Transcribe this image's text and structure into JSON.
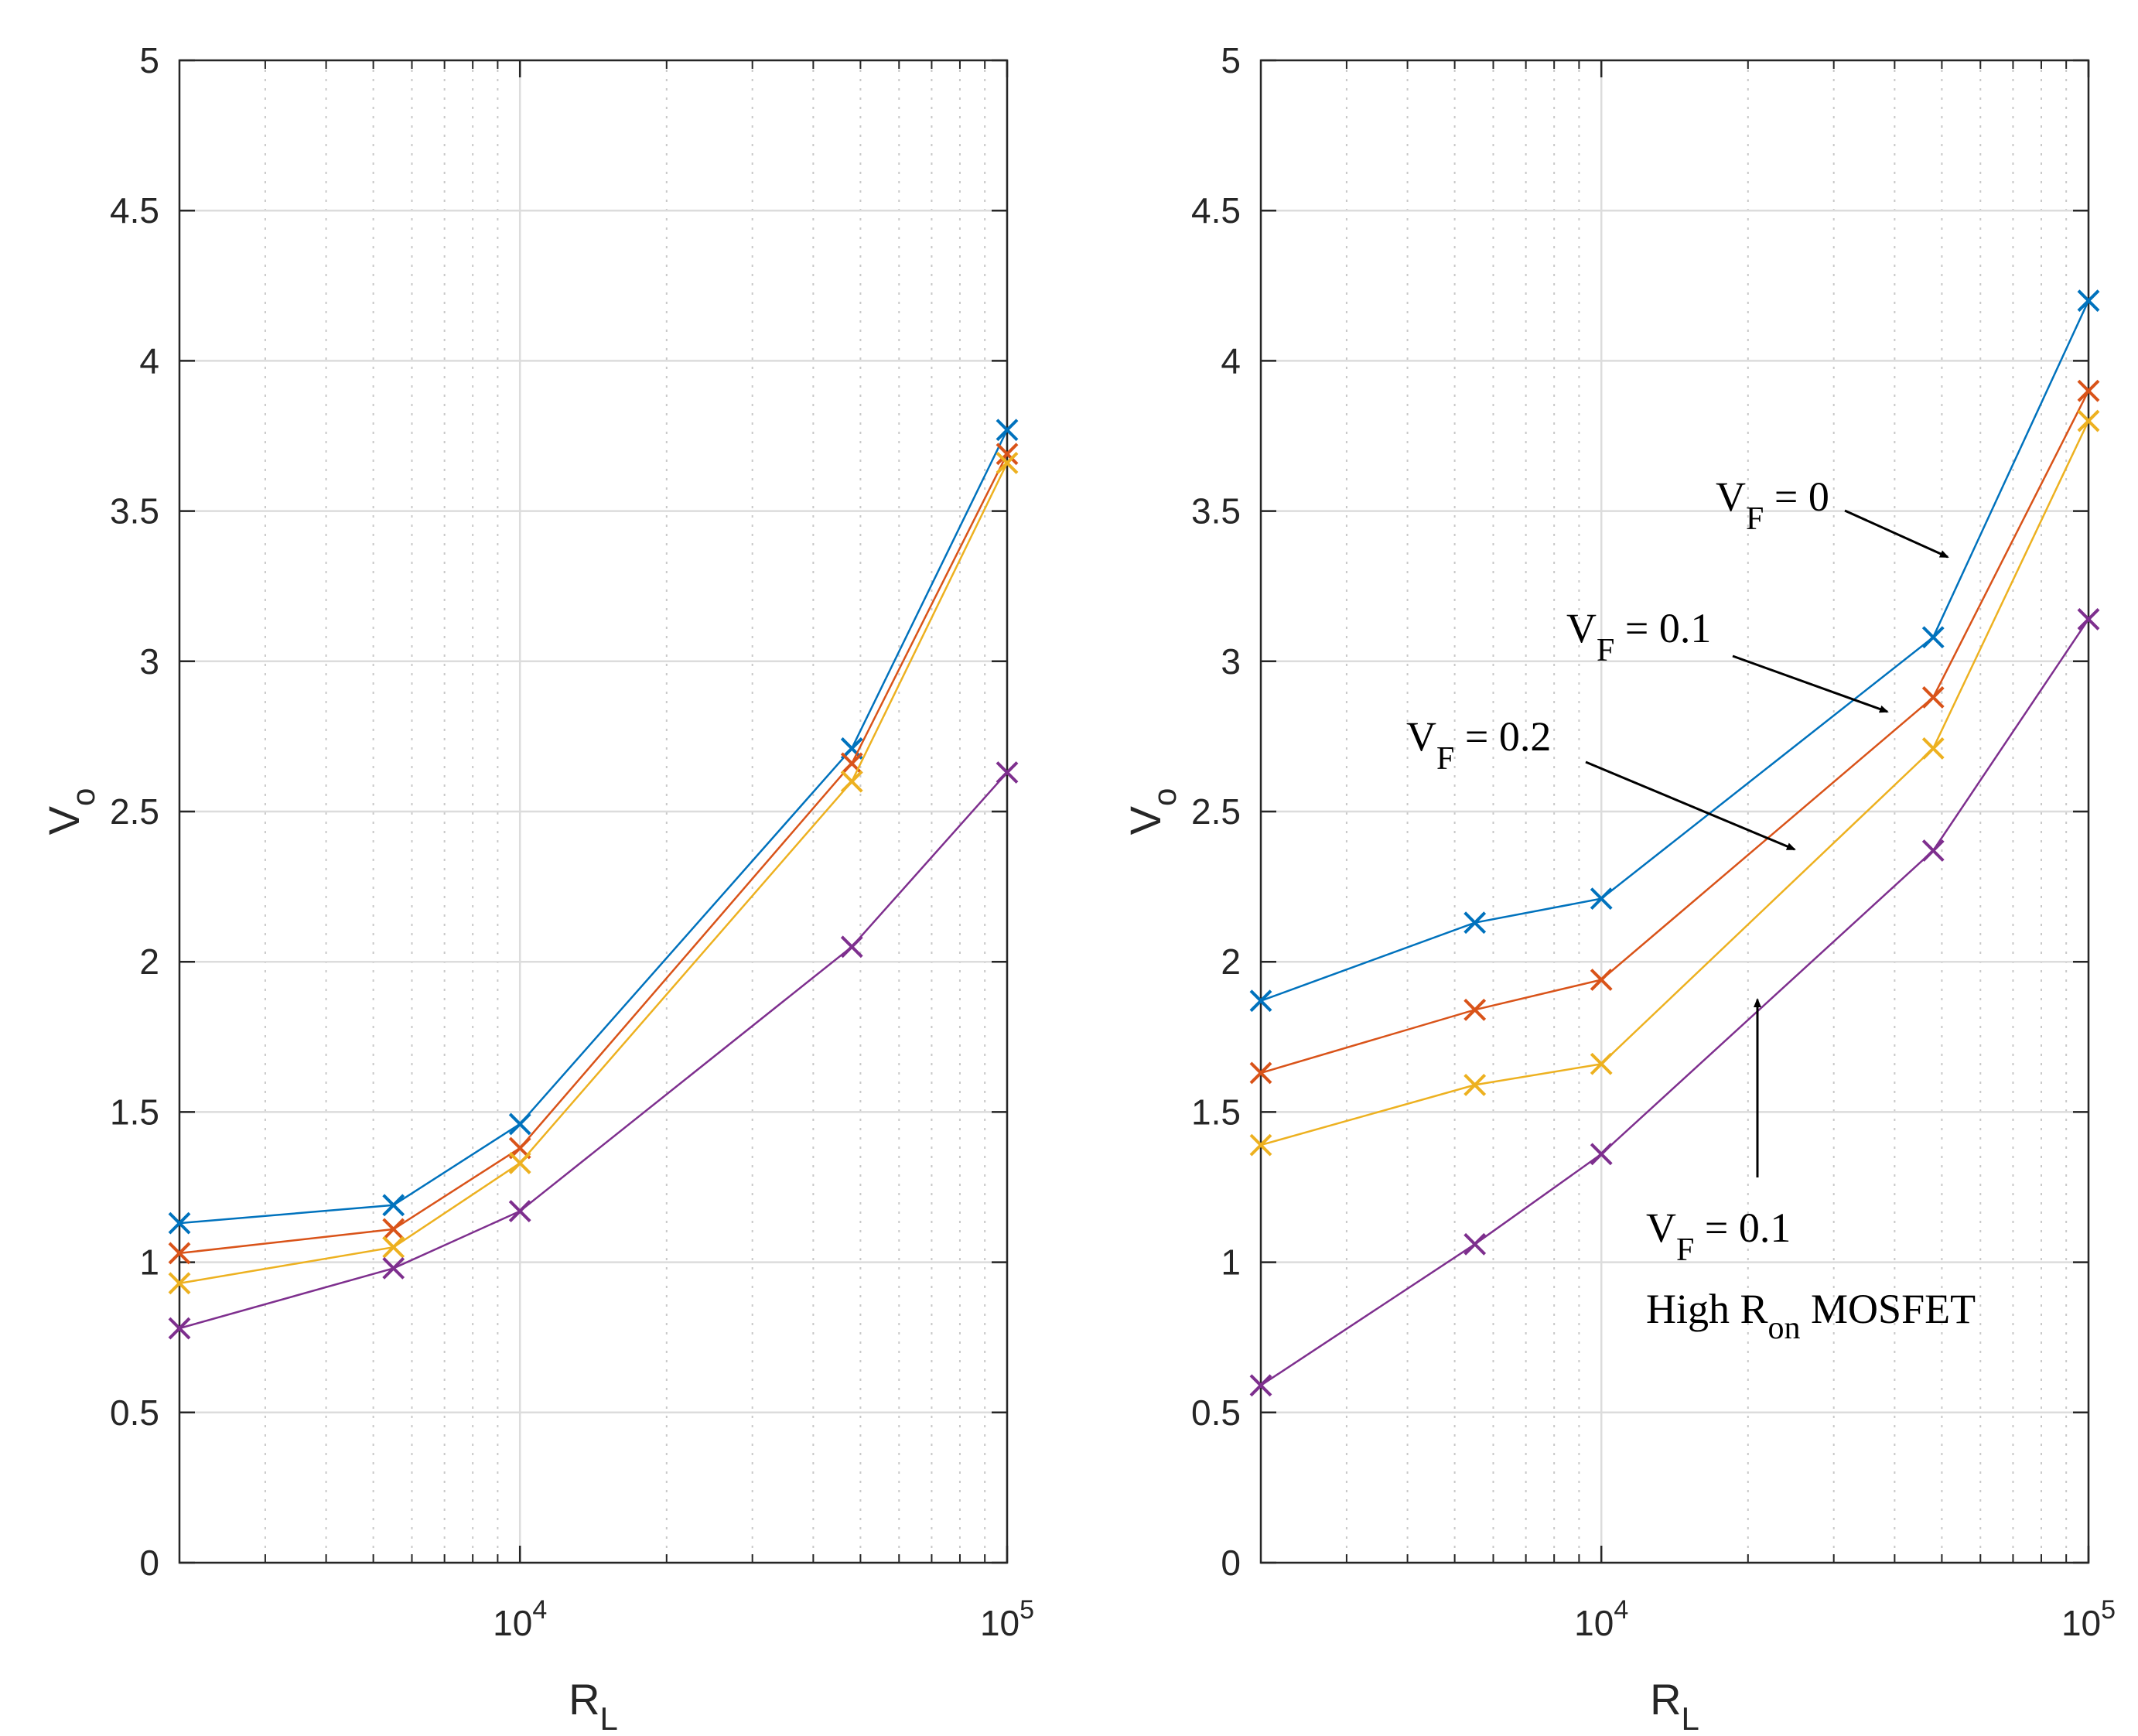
{
  "colors": {
    "blue": "#0072BD",
    "orange": "#D95319",
    "yellow": "#EDB120",
    "purple": "#7E2F8E",
    "axis": "#262626",
    "grid": "#dcdcdc",
    "arrow": "#000000"
  },
  "chart_data": [
    {
      "type": "line",
      "marker": "x",
      "xscale": "log",
      "xlim": [
        2000,
        100000
      ],
      "ylim": [
        0,
        5
      ],
      "grid": true,
      "xlabel_main": "R",
      "xlabel_sub": "L",
      "ylabel_main": "V",
      "ylabel_sub": "o",
      "yticks": [
        "0",
        "0.5",
        "1",
        "1.5",
        "2",
        "2.5",
        "3",
        "3.5",
        "4",
        "4.5",
        "5"
      ],
      "xticks": [
        {
          "value": 10000,
          "base": "10",
          "exp": "4"
        },
        {
          "value": 100000,
          "base": "10",
          "exp": "5"
        }
      ],
      "x": [
        2000,
        5500,
        10000,
        48000,
        100000
      ],
      "series": [
        {
          "name": "blue",
          "color_key": "blue",
          "values": [
            1.13,
            1.19,
            1.46,
            2.71,
            3.77
          ]
        },
        {
          "name": "orange",
          "color_key": "orange",
          "values": [
            1.03,
            1.11,
            1.38,
            2.66,
            3.69
          ]
        },
        {
          "name": "yellow",
          "color_key": "yellow",
          "values": [
            0.93,
            1.05,
            1.33,
            2.6,
            3.66
          ]
        },
        {
          "name": "purple",
          "color_key": "purple",
          "values": [
            0.78,
            0.98,
            1.17,
            2.05,
            2.63
          ]
        }
      ],
      "annotations": []
    },
    {
      "type": "line",
      "marker": "x",
      "xscale": "log",
      "xlim": [
        2000,
        100000
      ],
      "ylim": [
        0,
        5
      ],
      "grid": true,
      "xlabel_main": "R",
      "xlabel_sub": "L",
      "ylabel_main": "V",
      "ylabel_sub": "o",
      "yticks": [
        "0",
        "0.5",
        "1",
        "1.5",
        "2",
        "2.5",
        "3",
        "3.5",
        "4",
        "4.5",
        "5"
      ],
      "xticks": [
        {
          "value": 10000,
          "base": "10",
          "exp": "4"
        },
        {
          "value": 100000,
          "base": "10",
          "exp": "5"
        }
      ],
      "x": [
        2000,
        5500,
        10000,
        48000,
        100000
      ],
      "series": [
        {
          "name": "V_F = 0",
          "color_key": "blue",
          "values": [
            1.87,
            2.13,
            2.21,
            3.08,
            4.2
          ]
        },
        {
          "name": "V_F = 0.1",
          "color_key": "orange",
          "values": [
            1.63,
            1.84,
            1.94,
            2.88,
            3.9
          ]
        },
        {
          "name": "V_F = 0.2",
          "color_key": "yellow",
          "values": [
            1.39,
            1.59,
            1.66,
            2.71,
            3.8
          ]
        },
        {
          "name": "V_F = 0.1 High R_on MOSFET",
          "color_key": "purple",
          "values": [
            0.59,
            1.06,
            1.36,
            2.37,
            3.14
          ]
        }
      ],
      "annotations": [
        {
          "id": "vf0",
          "main": "V",
          "sub": "F",
          "rest": " = 0",
          "line2": null,
          "line2_main": null,
          "line2_sub": null,
          "line2_rest": null
        },
        {
          "id": "vf01",
          "main": "V",
          "sub": "F",
          "rest": " = 0.1",
          "line2": null,
          "line2_main": null,
          "line2_sub": null,
          "line2_rest": null
        },
        {
          "id": "vf02",
          "main": "V",
          "sub": "F",
          "rest": " = 0.2",
          "line2": null,
          "line2_main": null,
          "line2_sub": null,
          "line2_rest": null
        },
        {
          "id": "vf01-mosfet",
          "main": "V",
          "sub": "F",
          "rest": " = 0.1",
          "line2": true,
          "line2_main": "High R",
          "line2_sub": "on",
          "line2_rest": "  MOSFET"
        }
      ]
    }
  ]
}
